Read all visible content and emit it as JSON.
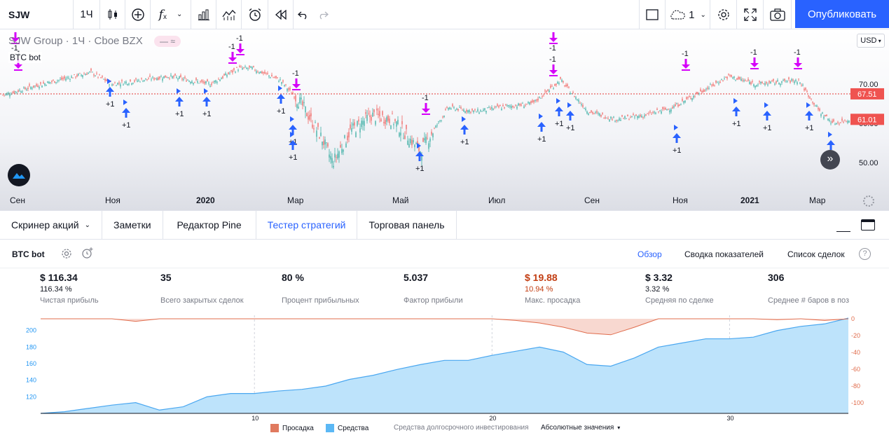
{
  "toolbar": {
    "symbol": "SJW",
    "interval": "1Ч",
    "layout_count": "1",
    "publish_label": "Опубликовать"
  },
  "chart": {
    "legend_title": "SJW Group · 1Ч · Cboe BZX",
    "legend_pill": "— ≈",
    "strategy_label": "BTC bot",
    "currency": "USD",
    "price_labels": [
      "70.00",
      "60.00",
      "50.00"
    ],
    "last_price": "61.01",
    "line_price": "67.51",
    "time_labels": [
      "Сен",
      "Ноя",
      "2020",
      "Мар",
      "Май",
      "Июл",
      "Сен",
      "Ноя",
      "2021",
      "Мар"
    ],
    "time_labels_bold": [
      false,
      false,
      true,
      false,
      false,
      false,
      false,
      false,
      true,
      false
    ],
    "trade_labels": [
      "-1",
      "+1",
      "+1",
      "+1",
      "+1",
      "-1",
      "-1",
      "-1",
      "+1",
      "+1",
      "-1",
      "+1",
      "-1",
      "+1",
      "+1",
      "+1",
      "-1",
      "+1",
      "+1",
      "+1",
      "-1",
      "+1",
      "+1",
      "-1",
      "+1",
      "+1",
      "+1"
    ]
  },
  "bottom_tabs": [
    {
      "label": "Скринер акций",
      "has_caret": true
    },
    {
      "label": "Заметки"
    },
    {
      "label": "Редактор Pine"
    },
    {
      "label": "Тестер стратегий",
      "active": true
    },
    {
      "label": "Торговая панель"
    }
  ],
  "tester": {
    "strategy_name": "BTC bot",
    "tabs": [
      "Обзор",
      "Сводка показателей",
      "Список сделок"
    ],
    "stats": [
      {
        "value": "$ 116.34",
        "pct": "116.34 %",
        "label": "Чистая прибыль"
      },
      {
        "value": "35",
        "pct": "",
        "label": "Всего закрытых сделок"
      },
      {
        "value": "80 %",
        "pct": "",
        "label": "Процент прибыльных"
      },
      {
        "value": "5.037",
        "pct": "",
        "label": "Фактор прибыли"
      },
      {
        "value": "$ 19.88",
        "pct": "10.94 %",
        "label": "Макс. просадка",
        "negative": true
      },
      {
        "value": "$ 3.32",
        "pct": "3.32 %",
        "label": "Средняя по сделке"
      },
      {
        "value": "306",
        "pct": "",
        "label": "Среднее # баров в пози"
      }
    ],
    "legend": {
      "drawdown": "Просадка",
      "equity": "Средства",
      "buy_hold": "Средства долгосрочного инвестирования",
      "mode": "Абсолютные значения"
    },
    "colors": {
      "equity": "#bde3fb",
      "equity_line": "#4aa7f0",
      "drawdown": "#f8d8d0",
      "drawdown_line": "#e06c4c",
      "accent": "#2962ff"
    }
  },
  "chart_data": {
    "type": "area",
    "x": [
      1,
      2,
      3,
      4,
      5,
      6,
      7,
      8,
      9,
      10,
      11,
      12,
      13,
      14,
      15,
      16,
      17,
      18,
      19,
      20,
      21,
      22,
      23,
      24,
      25,
      26,
      27,
      28,
      29,
      30,
      31,
      32,
      33,
      34,
      35
    ],
    "series": [
      {
        "name": "Средства",
        "values": [
          100,
          102,
          106,
          110,
          113,
          104,
          108,
          120,
          124,
          124,
          127,
          129,
          133,
          141,
          146,
          153,
          159,
          164,
          164,
          170,
          175,
          180,
          174,
          159,
          157,
          167,
          180,
          185,
          190,
          190,
          192,
          200,
          205,
          208,
          215
        ]
      },
      {
        "name": "Просадка",
        "values": [
          0,
          0,
          0,
          0,
          -3,
          0,
          0,
          0,
          0,
          0,
          0,
          0,
          0,
          0,
          0,
          0,
          0,
          0,
          0,
          0,
          -2,
          -5,
          -10,
          -17,
          -19,
          -10,
          0,
          0,
          0,
          0,
          0,
          -1,
          0,
          -2,
          0
        ]
      }
    ],
    "x_ticks": [
      10,
      20,
      30
    ],
    "left_ticks": [
      120,
      140,
      160,
      180,
      200
    ],
    "right_ticks": [
      0,
      -20,
      -40,
      -60,
      -80,
      -100
    ]
  }
}
